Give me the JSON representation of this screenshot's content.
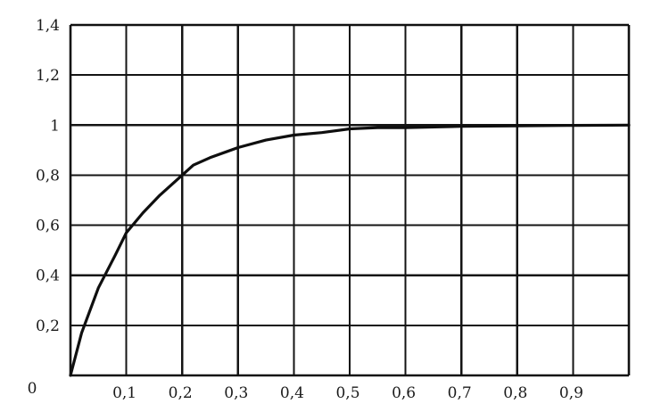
{
  "chart_data": {
    "type": "line",
    "title": "",
    "xlabel": "",
    "ylabel": "",
    "xlim": [
      0,
      1.0
    ],
    "ylim": [
      0,
      1.4
    ],
    "grid": true,
    "x_ticks": [
      {
        "value": 0.1,
        "label": "0,1"
      },
      {
        "value": 0.2,
        "label": "0,2"
      },
      {
        "value": 0.3,
        "label": "0,3"
      },
      {
        "value": 0.4,
        "label": "0,4"
      },
      {
        "value": 0.5,
        "label": "0,5"
      },
      {
        "value": 0.6,
        "label": "0,6"
      },
      {
        "value": 0.7,
        "label": "0,7"
      },
      {
        "value": 0.8,
        "label": "0,8"
      },
      {
        "value": 0.9,
        "label": "0,9"
      }
    ],
    "y_ticks": [
      {
        "value": 0.2,
        "label": "0,2"
      },
      {
        "value": 0.4,
        "label": "0,4"
      },
      {
        "value": 0.6,
        "label": "0,6"
      },
      {
        "value": 0.8,
        "label": "0,8"
      },
      {
        "value": 1.0,
        "label": "1"
      },
      {
        "value": 1.2,
        "label": "1,2"
      },
      {
        "value": 1.4,
        "label": "1,4"
      }
    ],
    "origin_label": "0",
    "series": [
      {
        "x": [
          0,
          0.02,
          0.05,
          0.08,
          0.1,
          0.13,
          0.16,
          0.2,
          0.22,
          0.25,
          0.3,
          0.35,
          0.4,
          0.45,
          0.5,
          0.55,
          0.6,
          0.7,
          0.8,
          0.9,
          1.0
        ],
        "y": [
          0,
          0.17,
          0.35,
          0.48,
          0.57,
          0.65,
          0.72,
          0.8,
          0.84,
          0.87,
          0.91,
          0.94,
          0.96,
          0.97,
          0.985,
          0.99,
          0.99,
          0.995,
          0.997,
          0.999,
          1.0
        ],
        "color": "#0f0f0f"
      }
    ]
  }
}
